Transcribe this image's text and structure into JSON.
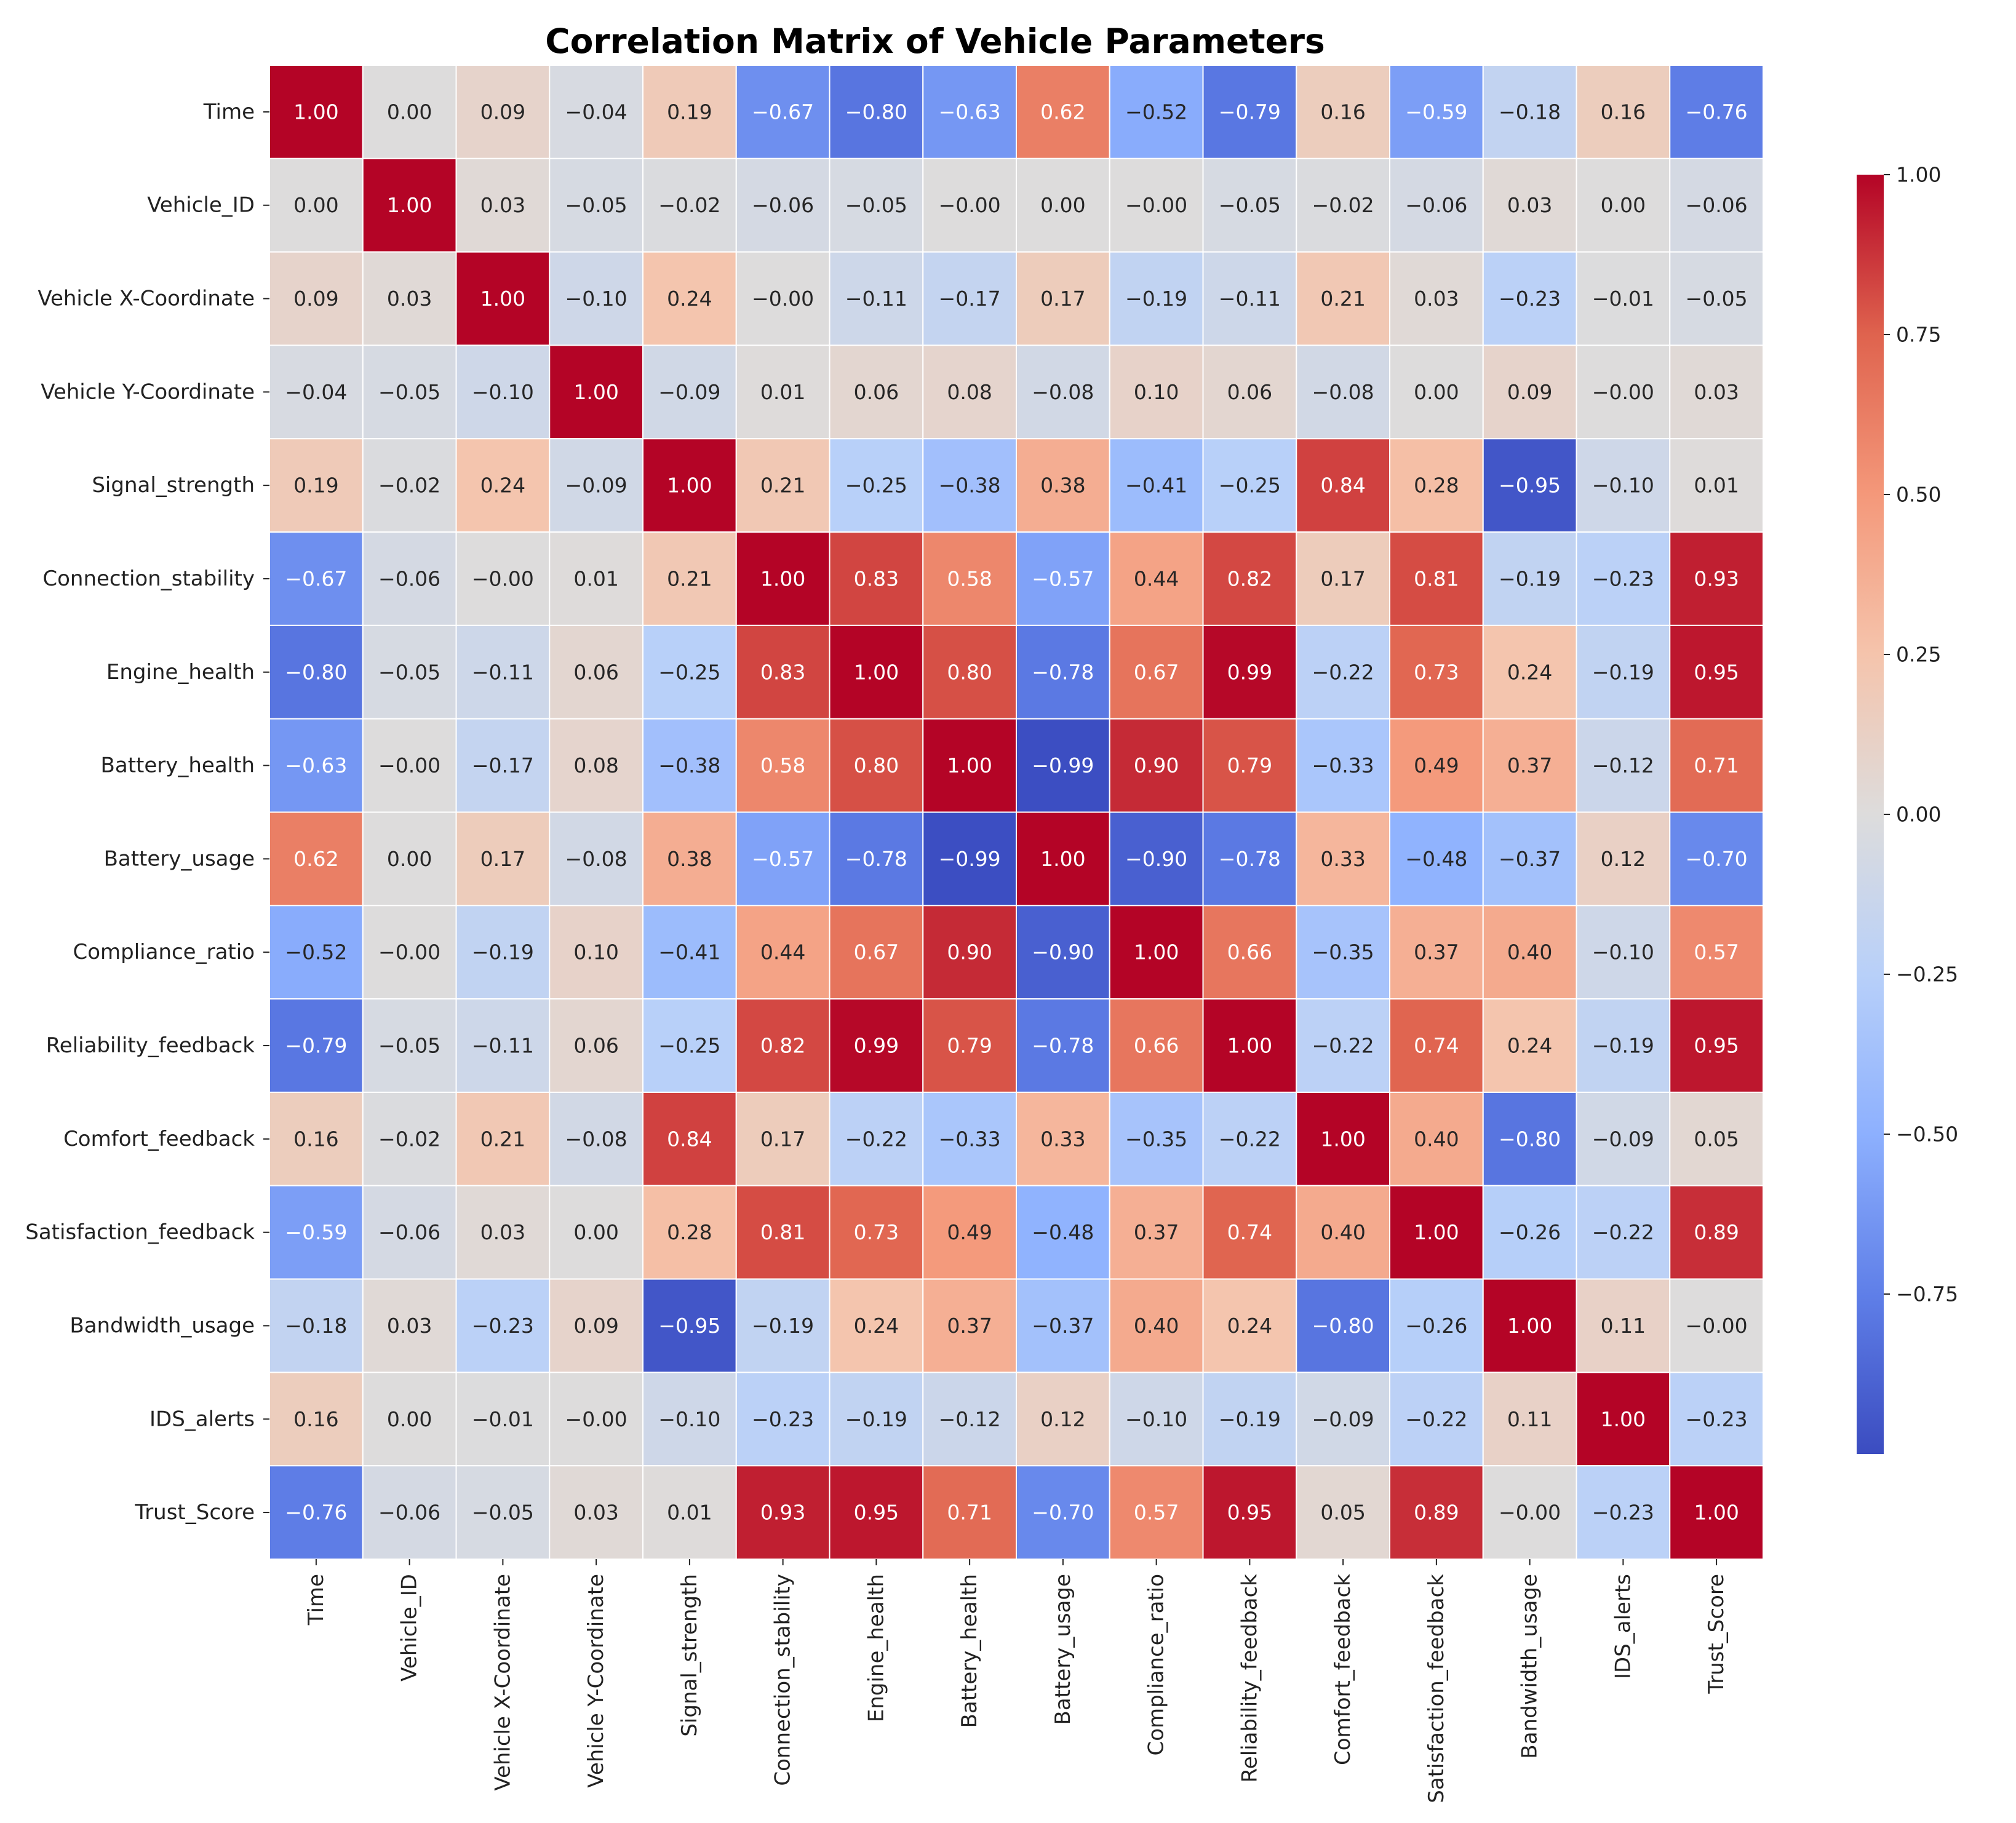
{
  "chart_data": {
    "type": "heatmap",
    "title": "Correlation Matrix of Vehicle Parameters",
    "xlabel": "",
    "ylabel": "",
    "colormap": "coolwarm",
    "value_range": [
      -1.0,
      1.0
    ],
    "variables": [
      "Time",
      "Vehicle_ID",
      "Vehicle X-Coordinate",
      "Vehicle Y-Coordinate",
      "Signal_strength",
      "Connection_stability",
      "Engine_health",
      "Battery_health",
      "Battery_usage",
      "Compliance_ratio",
      "Reliability_feedback",
      "Comfort_feedback",
      "Satisfaction_feedback",
      "Bandwidth_usage",
      "IDS_alerts",
      "Trust_Score"
    ],
    "values": [
      [
        1.0,
        0.0,
        0.09,
        -0.04,
        0.19,
        -0.67,
        -0.8,
        -0.63,
        0.62,
        -0.52,
        -0.79,
        0.16,
        -0.59,
        -0.18,
        0.16,
        -0.76
      ],
      [
        0.0,
        1.0,
        0.03,
        -0.05,
        -0.02,
        -0.06,
        -0.05,
        -0.0,
        0.0,
        -0.0,
        -0.05,
        -0.02,
        -0.06,
        0.03,
        0.0,
        -0.06
      ],
      [
        0.09,
        0.03,
        1.0,
        -0.1,
        0.24,
        -0.0,
        -0.11,
        -0.17,
        0.17,
        -0.19,
        -0.11,
        0.21,
        0.03,
        -0.23,
        -0.01,
        -0.05
      ],
      [
        -0.04,
        -0.05,
        -0.1,
        1.0,
        -0.09,
        0.01,
        0.06,
        0.08,
        -0.08,
        0.1,
        0.06,
        -0.08,
        0.0,
        0.09,
        -0.0,
        0.03
      ],
      [
        0.19,
        -0.02,
        0.24,
        -0.09,
        1.0,
        0.21,
        -0.25,
        -0.38,
        0.38,
        -0.41,
        -0.25,
        0.84,
        0.28,
        -0.95,
        -0.1,
        0.01
      ],
      [
        -0.67,
        -0.06,
        -0.0,
        0.01,
        0.21,
        1.0,
        0.83,
        0.58,
        -0.57,
        0.44,
        0.82,
        0.17,
        0.81,
        -0.19,
        -0.23,
        0.93
      ],
      [
        -0.8,
        -0.05,
        -0.11,
        0.06,
        -0.25,
        0.83,
        1.0,
        0.8,
        -0.78,
        0.67,
        0.99,
        -0.22,
        0.73,
        0.24,
        -0.19,
        0.95
      ],
      [
        -0.63,
        -0.0,
        -0.17,
        0.08,
        -0.38,
        0.58,
        0.8,
        1.0,
        -0.99,
        0.9,
        0.79,
        -0.33,
        0.49,
        0.37,
        -0.12,
        0.71
      ],
      [
        0.62,
        0.0,
        0.17,
        -0.08,
        0.38,
        -0.57,
        -0.78,
        -0.99,
        1.0,
        -0.9,
        -0.78,
        0.33,
        -0.48,
        -0.37,
        0.12,
        -0.7
      ],
      [
        -0.52,
        -0.0,
        -0.19,
        0.1,
        -0.41,
        0.44,
        0.67,
        0.9,
        -0.9,
        1.0,
        0.66,
        -0.35,
        0.37,
        0.4,
        -0.1,
        0.57
      ],
      [
        -0.79,
        -0.05,
        -0.11,
        0.06,
        -0.25,
        0.82,
        0.99,
        0.79,
        -0.78,
        0.66,
        1.0,
        -0.22,
        0.74,
        0.24,
        -0.19,
        0.95
      ],
      [
        0.16,
        -0.02,
        0.21,
        -0.08,
        0.84,
        0.17,
        -0.22,
        -0.33,
        0.33,
        -0.35,
        -0.22,
        1.0,
        0.4,
        -0.8,
        -0.09,
        0.05
      ],
      [
        -0.59,
        -0.06,
        0.03,
        0.0,
        0.28,
        0.81,
        0.73,
        0.49,
        -0.48,
        0.37,
        0.74,
        0.4,
        1.0,
        -0.26,
        -0.22,
        0.89
      ],
      [
        -0.18,
        0.03,
        -0.23,
        0.09,
        -0.95,
        -0.19,
        0.24,
        0.37,
        -0.37,
        0.4,
        0.24,
        -0.8,
        -0.26,
        1.0,
        0.11,
        -0.0
      ],
      [
        0.16,
        0.0,
        -0.01,
        -0.0,
        -0.1,
        -0.23,
        -0.19,
        -0.12,
        0.12,
        -0.1,
        -0.19,
        -0.09,
        -0.22,
        0.11,
        1.0,
        -0.23
      ],
      [
        -0.76,
        -0.06,
        -0.05,
        0.03,
        0.01,
        0.93,
        0.95,
        0.71,
        -0.7,
        0.57,
        0.95,
        0.05,
        0.89,
        -0.0,
        -0.23,
        1.0
      ]
    ],
    "colorbar": {
      "ticks": [
        1.0,
        0.75,
        0.5,
        0.25,
        0.0,
        -0.25,
        -0.5,
        -0.75
      ],
      "tick_labels": [
        "1.00",
        "0.75",
        "0.50",
        "0.25",
        "0.00",
        "−0.25",
        "−0.50",
        "−0.75"
      ],
      "range": [
        -1.0,
        1.0
      ]
    },
    "colormap_stops": [
      {
        "v": -1.0,
        "color": "#3b4cc0"
      },
      {
        "v": -0.75,
        "color": "#5f7fe8"
      },
      {
        "v": -0.5,
        "color": "#8db0fe"
      },
      {
        "v": -0.25,
        "color": "#b8d0f9"
      },
      {
        "v": 0.0,
        "color": "#dddcdc"
      },
      {
        "v": 0.25,
        "color": "#f5c4ac"
      },
      {
        "v": 0.5,
        "color": "#f4987a"
      },
      {
        "v": 0.75,
        "color": "#df634e"
      },
      {
        "v": 1.0,
        "color": "#b40426"
      }
    ],
    "cell_text_colors": {
      "dark": "#262626",
      "light": "#ffffff"
    },
    "grid_line_color": "#ffffff"
  }
}
